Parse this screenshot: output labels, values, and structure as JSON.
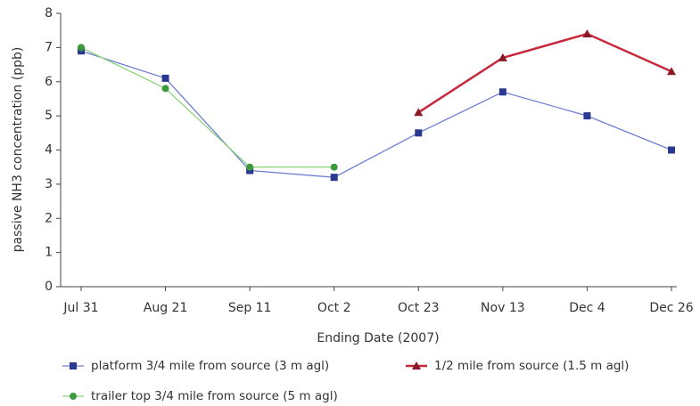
{
  "chart_data": {
    "type": "line",
    "x_label": "Ending Date (2007)",
    "y_label": "passive NH3 concentration (ppb)",
    "categories": [
      "Jul 31",
      "Aug 21",
      "Sep 11",
      "Oct 2",
      "Oct 23",
      "Nov 13",
      "Dec 4",
      "Dec 26"
    ],
    "series": [
      {
        "name": "platform 3/4 mile from source (3 m agl)",
        "color": "#6f7fd0",
        "marker_color": "#2a3990",
        "marker": "square",
        "values": [
          6.9,
          6.1,
          3.4,
          3.2,
          4.5,
          5.7,
          5.0,
          4.0
        ]
      },
      {
        "name": "1/2 mile from source (1.5 m agl)",
        "color": "#c8283c",
        "marker_color": "#8a1a28",
        "marker": "triangle",
        "values": [
          null,
          null,
          null,
          null,
          5.1,
          6.7,
          7.4,
          6.3
        ]
      },
      {
        "name": "trailer top 3/4 mile from source (5 m agl)",
        "color": "#8fd47f",
        "marker_color": "#3c9a3c",
        "marker": "circle",
        "values": [
          7.0,
          5.8,
          3.5,
          3.5,
          null,
          null,
          null,
          null
        ]
      }
    ],
    "ylim": [
      0,
      8
    ],
    "yticks": [
      0,
      1,
      2,
      3,
      4,
      5,
      6,
      7,
      8
    ],
    "grid": false
  }
}
